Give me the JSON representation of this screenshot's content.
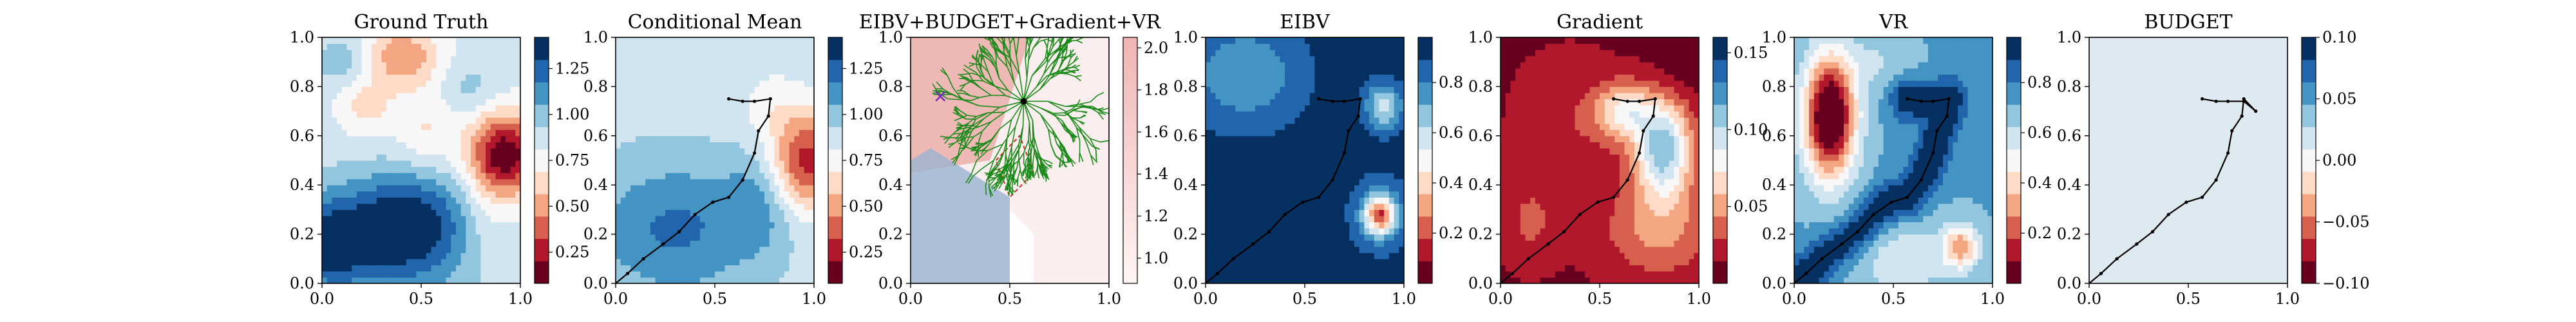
{
  "figure": {
    "background": "#ffffff",
    "cmap_rdbu": [
      "#67001f",
      "#b2182b",
      "#d6604d",
      "#f4a582",
      "#fddbc7",
      "#f7f7f7",
      "#d1e5f0",
      "#92c5de",
      "#4393c3",
      "#2166ac",
      "#053061"
    ]
  },
  "chart_data": [
    {
      "type": "heatmap",
      "title": "Ground Truth",
      "xlim": [
        0,
        1
      ],
      "ylim": [
        0,
        1
      ],
      "xticks": [
        "0.0",
        "0.5",
        "1.0"
      ],
      "yticks": [
        "0.0",
        "0.2",
        "0.4",
        "0.6",
        "0.8",
        "1.0"
      ],
      "colorbar": {
        "ticks": [
          "0.25",
          "0.50",
          "0.75",
          "1.00",
          "1.25"
        ],
        "range": [
          0.08,
          1.42
        ]
      },
      "field": [
        {
          "x": 0.4,
          "y": 0.92,
          "sx": 0.14,
          "sy": 0.09,
          "v": -0.42
        },
        {
          "x": 0.22,
          "y": 0.72,
          "sx": 0.1,
          "sy": 0.08,
          "v": -0.22
        },
        {
          "x": 0.52,
          "y": 0.62,
          "sx": 0.1,
          "sy": 0.1,
          "v": -0.18
        },
        {
          "x": 0.82,
          "y": 0.22,
          "sx": 0.12,
          "sy": 0.12,
          "v": -0.15
        },
        {
          "x": 0.92,
          "y": 0.52,
          "sx": 0.13,
          "sy": 0.12,
          "v": -0.78
        },
        {
          "x": 0.12,
          "y": 0.9,
          "sx": 0.12,
          "sy": 0.07,
          "v": 0.18
        },
        {
          "x": 0.02,
          "y": 0.15,
          "sx": 0.12,
          "sy": 0.12,
          "v": 0.3
        },
        {
          "x": 0.35,
          "y": 0.18,
          "sx": 0.32,
          "sy": 0.16,
          "v": 0.48
        },
        {
          "x": 0.45,
          "y": 0.3,
          "sx": 0.22,
          "sy": 0.12,
          "v": 0.2
        },
        {
          "x": 0.75,
          "y": 0.8,
          "sx": 0.1,
          "sy": 0.08,
          "v": 0.12
        }
      ],
      "field_base": 0.86
    },
    {
      "type": "heatmap",
      "title": "Conditional Mean",
      "xlim": [
        0,
        1
      ],
      "ylim": [
        0,
        1
      ],
      "xticks": [
        "0.0",
        "0.5",
        "1.0"
      ],
      "yticks": [
        "0.0",
        "0.2",
        "0.4",
        "0.6",
        "0.8",
        "1.0"
      ],
      "colorbar": {
        "ticks": [
          "0.25",
          "0.50",
          "0.75",
          "1.00",
          "1.25"
        ],
        "range": [
          0.08,
          1.42
        ]
      },
      "field": [
        {
          "x": 0.96,
          "y": 0.5,
          "sx": 0.12,
          "sy": 0.14,
          "v": -0.62
        },
        {
          "x": 0.78,
          "y": 0.72,
          "sx": 0.1,
          "sy": 0.1,
          "v": -0.12
        },
        {
          "x": 0.3,
          "y": 0.22,
          "sx": 0.3,
          "sy": 0.2,
          "v": 0.32
        },
        {
          "x": 0.72,
          "y": 0.32,
          "sx": 0.12,
          "sy": 0.14,
          "v": 0.18
        },
        {
          "x": 0.05,
          "y": 0.9,
          "sx": 0.2,
          "sy": 0.15,
          "v": 0.05
        }
      ],
      "field_base": 0.88,
      "path": [
        [
          0.0,
          0.0
        ],
        [
          0.06,
          0.04
        ],
        [
          0.14,
          0.1
        ],
        [
          0.24,
          0.16
        ],
        [
          0.32,
          0.21
        ],
        [
          0.4,
          0.28
        ],
        [
          0.49,
          0.33
        ],
        [
          0.57,
          0.35
        ],
        [
          0.64,
          0.42
        ],
        [
          0.7,
          0.53
        ],
        [
          0.72,
          0.62
        ],
        [
          0.77,
          0.68
        ],
        [
          0.78,
          0.75
        ],
        [
          0.7,
          0.74
        ],
        [
          0.64,
          0.74
        ],
        [
          0.57,
          0.75
        ]
      ]
    },
    {
      "type": "heatmap",
      "title": "EIBV+BUDGET+Gradient+VR",
      "xlim": [
        0,
        1
      ],
      "ylim": [
        0,
        1
      ],
      "xticks": [
        "0.0",
        "0.5",
        "1.0"
      ],
      "yticks": [
        "0.0",
        "0.2",
        "0.4",
        "0.6",
        "0.8",
        "1.0"
      ],
      "colorbar": {
        "ticks": [
          "1.0",
          "1.2",
          "1.4",
          "1.6",
          "1.8",
          "2.0"
        ],
        "range": [
          0.88,
          2.05
        ]
      },
      "tree_root": [
        0.57,
        0.74
      ],
      "cross_marker": [
        0.15,
        0.76
      ],
      "colors": {
        "tree": "#1a8a1a",
        "marker": "#7b2cbf",
        "boundary": "#d62728"
      }
    },
    {
      "type": "heatmap",
      "title": "EIBV",
      "xlim": [
        0,
        1
      ],
      "ylim": [
        0,
        1
      ],
      "xticks": [
        "0.0",
        "0.5",
        "1.0"
      ],
      "yticks": [
        "0.0",
        "0.2",
        "0.4",
        "0.6",
        "0.8",
        "1.0"
      ],
      "colorbar": {
        "ticks": [
          "0.2",
          "0.4",
          "0.6",
          "0.8"
        ],
        "range": [
          0.0,
          0.98
        ]
      },
      "field": [
        {
          "x": 0.88,
          "y": 0.28,
          "sx": 0.05,
          "sy": 0.05,
          "v": -0.55
        },
        {
          "x": 0.88,
          "y": 0.28,
          "sx": 0.1,
          "sy": 0.1,
          "v": -0.25
        },
        {
          "x": 0.2,
          "y": 0.85,
          "sx": 0.22,
          "sy": 0.16,
          "v": -0.22
        },
        {
          "x": 0.9,
          "y": 0.72,
          "sx": 0.07,
          "sy": 0.07,
          "v": -0.35
        }
      ],
      "field_base": 0.95,
      "path": [
        [
          0.0,
          0.0
        ],
        [
          0.06,
          0.04
        ],
        [
          0.14,
          0.1
        ],
        [
          0.24,
          0.16
        ],
        [
          0.32,
          0.21
        ],
        [
          0.4,
          0.28
        ],
        [
          0.49,
          0.33
        ],
        [
          0.57,
          0.35
        ],
        [
          0.64,
          0.42
        ],
        [
          0.7,
          0.53
        ],
        [
          0.72,
          0.62
        ],
        [
          0.77,
          0.68
        ],
        [
          0.78,
          0.75
        ],
        [
          0.7,
          0.74
        ],
        [
          0.64,
          0.74
        ],
        [
          0.57,
          0.75
        ]
      ]
    },
    {
      "type": "heatmap",
      "title": "Gradient",
      "xlim": [
        0,
        1
      ],
      "ylim": [
        0,
        1
      ],
      "xticks": [
        "0.0",
        "0.5",
        "1.0"
      ],
      "yticks": [
        "0.0",
        "0.2",
        "0.4",
        "0.6",
        "0.8",
        "1.0"
      ],
      "colorbar": {
        "ticks": [
          "0.05",
          "0.10",
          "0.15"
        ],
        "range": [
          0.0,
          0.16
        ]
      },
      "field": [
        {
          "x": 0.82,
          "y": 0.55,
          "sx": 0.1,
          "sy": 0.14,
          "v": 0.1
        },
        {
          "x": 0.62,
          "y": 0.7,
          "sx": 0.1,
          "sy": 0.08,
          "v": 0.06
        },
        {
          "x": 0.8,
          "y": 0.22,
          "sx": 0.2,
          "sy": 0.14,
          "v": 0.035
        },
        {
          "x": 0.35,
          "y": 0.65,
          "sx": 0.18,
          "sy": 0.18,
          "v": 0.015
        },
        {
          "x": 0.9,
          "y": 0.88,
          "sx": 0.1,
          "sy": 0.1,
          "v": -0.01
        },
        {
          "x": 0.15,
          "y": 0.25,
          "sx": 0.1,
          "sy": 0.12,
          "v": 0.02
        }
      ],
      "field_base": 0.012,
      "path": [
        [
          0.0,
          0.0
        ],
        [
          0.06,
          0.04
        ],
        [
          0.14,
          0.1
        ],
        [
          0.24,
          0.16
        ],
        [
          0.32,
          0.21
        ],
        [
          0.4,
          0.28
        ],
        [
          0.49,
          0.33
        ],
        [
          0.57,
          0.35
        ],
        [
          0.64,
          0.42
        ],
        [
          0.7,
          0.53
        ],
        [
          0.72,
          0.62
        ],
        [
          0.77,
          0.68
        ],
        [
          0.78,
          0.75
        ],
        [
          0.7,
          0.74
        ],
        [
          0.64,
          0.74
        ],
        [
          0.57,
          0.75
        ]
      ]
    },
    {
      "type": "heatmap",
      "title": "VR",
      "xlim": [
        0,
        1
      ],
      "ylim": [
        0,
        1
      ],
      "xticks": [
        "0.0",
        "0.5",
        "1.0"
      ],
      "yticks": [
        "0.0",
        "0.2",
        "0.4",
        "0.6",
        "0.8",
        "1.0"
      ],
      "colorbar": {
        "ticks": [
          "0.2",
          "0.4",
          "0.6",
          "0.8"
        ],
        "range": [
          0.0,
          0.98
        ]
      },
      "field": [
        {
          "x": 0.18,
          "y": 0.68,
          "sx": 0.09,
          "sy": 0.17,
          "v": -0.85
        },
        {
          "x": 0.84,
          "y": 0.15,
          "sx": 0.06,
          "sy": 0.06,
          "v": -0.4
        },
        {
          "x": 0.55,
          "y": 0.1,
          "sx": 0.2,
          "sy": 0.12,
          "v": -0.15
        },
        {
          "x": 0.42,
          "y": 0.9,
          "sx": 0.12,
          "sy": 0.08,
          "v": -0.1
        }
      ],
      "field_base": 0.72,
      "track_cool": true,
      "path": [
        [
          0.0,
          0.0
        ],
        [
          0.06,
          0.04
        ],
        [
          0.14,
          0.1
        ],
        [
          0.24,
          0.16
        ],
        [
          0.32,
          0.21
        ],
        [
          0.4,
          0.28
        ],
        [
          0.49,
          0.33
        ],
        [
          0.57,
          0.35
        ],
        [
          0.64,
          0.42
        ],
        [
          0.7,
          0.53
        ],
        [
          0.72,
          0.62
        ],
        [
          0.77,
          0.68
        ],
        [
          0.78,
          0.75
        ],
        [
          0.7,
          0.74
        ],
        [
          0.64,
          0.74
        ],
        [
          0.57,
          0.75
        ]
      ]
    },
    {
      "type": "heatmap",
      "title": "BUDGET",
      "xlim": [
        0,
        1
      ],
      "ylim": [
        0,
        1
      ],
      "xticks": [
        "0.0",
        "0.5",
        "1.0"
      ],
      "yticks": [
        "0.0",
        "0.2",
        "0.4",
        "0.6",
        "0.8",
        "1.0"
      ],
      "colorbar": {
        "ticks": [
          "−0.10",
          "−0.05",
          "0.00",
          "0.05",
          "0.10"
        ],
        "range": [
          -0.1,
          0.1
        ]
      },
      "uniform_color": "#dfe9f0",
      "path": [
        [
          0.0,
          0.0
        ],
        [
          0.06,
          0.04
        ],
        [
          0.14,
          0.1
        ],
        [
          0.24,
          0.16
        ],
        [
          0.32,
          0.21
        ],
        [
          0.4,
          0.28
        ],
        [
          0.49,
          0.33
        ],
        [
          0.57,
          0.35
        ],
        [
          0.64,
          0.42
        ],
        [
          0.7,
          0.53
        ],
        [
          0.72,
          0.62
        ],
        [
          0.77,
          0.68
        ],
        [
          0.78,
          0.75
        ],
        [
          0.84,
          0.7
        ],
        [
          0.78,
          0.74
        ],
        [
          0.7,
          0.74
        ],
        [
          0.64,
          0.74
        ],
        [
          0.57,
          0.75
        ]
      ]
    }
  ]
}
